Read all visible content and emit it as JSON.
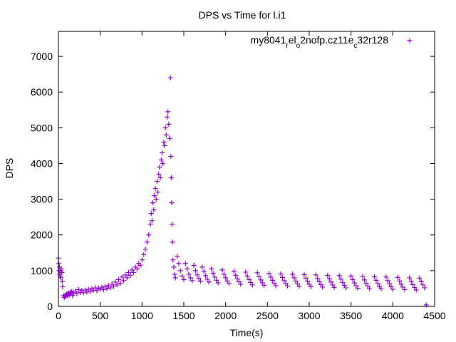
{
  "chart_data": {
    "type": "scatter",
    "title": "DPS vs Time for l.i1",
    "xlabel": "Time(s)",
    "ylabel": "DPS",
    "xlim": [
      0,
      4500
    ],
    "ylim": [
      0,
      7700
    ],
    "x_ticks": [
      0,
      500,
      1000,
      1500,
      2000,
      2500,
      3000,
      3500,
      4000,
      4500
    ],
    "y_ticks": [
      0,
      1000,
      2000,
      3000,
      4000,
      5000,
      6000,
      7000
    ],
    "grid": false,
    "legend_position": "top-right",
    "series": [
      {
        "name": "my8041_rel_o2nofp.cz11e_c32r128",
        "color": "#9400d3",
        "marker": "+",
        "points": [
          [
            0,
            1350
          ],
          [
            5,
            1200
          ],
          [
            8,
            1000
          ],
          [
            12,
            1100
          ],
          [
            15,
            900
          ],
          [
            20,
            850
          ],
          [
            25,
            1000
          ],
          [
            30,
            800
          ],
          [
            35,
            1050
          ],
          [
            40,
            950
          ],
          [
            45,
            700
          ],
          [
            50,
            550
          ],
          [
            60,
            300
          ],
          [
            70,
            250
          ],
          [
            80,
            320
          ],
          [
            90,
            280
          ],
          [
            100,
            350
          ],
          [
            110,
            300
          ],
          [
            120,
            380
          ],
          [
            130,
            320
          ],
          [
            140,
            400
          ],
          [
            150,
            350
          ],
          [
            160,
            420
          ],
          [
            170,
            300
          ],
          [
            180,
            380
          ],
          [
            200,
            430
          ],
          [
            220,
            350
          ],
          [
            240,
            470
          ],
          [
            260,
            390
          ],
          [
            280,
            450
          ],
          [
            300,
            380
          ],
          [
            320,
            460
          ],
          [
            340,
            400
          ],
          [
            360,
            480
          ],
          [
            380,
            420
          ],
          [
            400,
            500
          ],
          [
            420,
            450
          ],
          [
            440,
            520
          ],
          [
            460,
            440
          ],
          [
            480,
            510
          ],
          [
            500,
            480
          ],
          [
            520,
            540
          ],
          [
            540,
            470
          ],
          [
            560,
            560
          ],
          [
            580,
            500
          ],
          [
            600,
            580
          ],
          [
            620,
            520
          ],
          [
            640,
            620
          ],
          [
            660,
            560
          ],
          [
            680,
            680
          ],
          [
            700,
            600
          ],
          [
            720,
            750
          ],
          [
            740,
            650
          ],
          [
            760,
            820
          ],
          [
            780,
            720
          ],
          [
            800,
            880
          ],
          [
            820,
            800
          ],
          [
            840,
            950
          ],
          [
            860,
            870
          ],
          [
            880,
            1020
          ],
          [
            900,
            950
          ],
          [
            920,
            1100
          ],
          [
            940,
            1050
          ],
          [
            960,
            1200
          ],
          [
            980,
            1150
          ],
          [
            1000,
            1300
          ],
          [
            1020,
            1450
          ],
          [
            1040,
            1600
          ],
          [
            1060,
            1800
          ],
          [
            1080,
            2000
          ],
          [
            1100,
            2300
          ],
          [
            1110,
            2600
          ],
          [
            1120,
            2400
          ],
          [
            1130,
            2900
          ],
          [
            1140,
            2700
          ],
          [
            1150,
            3100
          ],
          [
            1160,
            3300
          ],
          [
            1170,
            3000
          ],
          [
            1180,
            3500
          ],
          [
            1190,
            3200
          ],
          [
            1200,
            3700
          ],
          [
            1210,
            3900
          ],
          [
            1220,
            3600
          ],
          [
            1230,
            4100
          ],
          [
            1240,
            4300
          ],
          [
            1250,
            4000
          ],
          [
            1260,
            4600
          ],
          [
            1270,
            4500
          ],
          [
            1280,
            5000
          ],
          [
            1290,
            4800
          ],
          [
            1300,
            5300
          ],
          [
            1310,
            5450
          ],
          [
            1320,
            5100
          ],
          [
            1330,
            4700
          ],
          [
            1340,
            6400
          ],
          [
            1345,
            4200
          ],
          [
            1350,
            3600
          ],
          [
            1355,
            2900
          ],
          [
            1360,
            2300
          ],
          [
            1365,
            1800
          ],
          [
            1370,
            1300
          ],
          [
            1380,
            1100
          ],
          [
            1390,
            900
          ],
          [
            1400,
            800
          ],
          [
            1420,
            1400
          ],
          [
            1440,
            1200
          ],
          [
            1460,
            1000
          ],
          [
            1480,
            850
          ],
          [
            1500,
            750
          ],
          [
            1520,
            1200
          ],
          [
            1540,
            1050
          ],
          [
            1560,
            900
          ],
          [
            1580,
            800
          ],
          [
            1600,
            720
          ],
          [
            1620,
            1150
          ],
          [
            1640,
            1000
          ],
          [
            1660,
            880
          ],
          [
            1680,
            780
          ],
          [
            1700,
            700
          ],
          [
            1720,
            1100
          ],
          [
            1740,
            980
          ],
          [
            1760,
            860
          ],
          [
            1780,
            760
          ],
          [
            1800,
            680
          ],
          [
            1830,
            1050
          ],
          [
            1850,
            930
          ],
          [
            1870,
            820
          ],
          [
            1890,
            730
          ],
          [
            1910,
            660
          ],
          [
            1960,
            1020
          ],
          [
            1980,
            900
          ],
          [
            2000,
            800
          ],
          [
            2020,
            710
          ],
          [
            2040,
            640
          ],
          [
            2100,
            980
          ],
          [
            2120,
            870
          ],
          [
            2140,
            770
          ],
          [
            2160,
            690
          ],
          [
            2180,
            620
          ],
          [
            2240,
            960
          ],
          [
            2260,
            850
          ],
          [
            2280,
            750
          ],
          [
            2300,
            670
          ],
          [
            2320,
            600
          ],
          [
            2380,
            940
          ],
          [
            2400,
            830
          ],
          [
            2420,
            740
          ],
          [
            2440,
            660
          ],
          [
            2460,
            590
          ],
          [
            2520,
            920
          ],
          [
            2540,
            820
          ],
          [
            2560,
            730
          ],
          [
            2580,
            650
          ],
          [
            2600,
            580
          ],
          [
            2660,
            910
          ],
          [
            2680,
            810
          ],
          [
            2700,
            720
          ],
          [
            2720,
            640
          ],
          [
            2740,
            570
          ],
          [
            2800,
            900
          ],
          [
            2820,
            800
          ],
          [
            2840,
            710
          ],
          [
            2860,
            630
          ],
          [
            2880,
            560
          ],
          [
            2940,
            890
          ],
          [
            2960,
            790
          ],
          [
            2980,
            700
          ],
          [
            3000,
            620
          ],
          [
            3020,
            550
          ],
          [
            3080,
            880
          ],
          [
            3100,
            780
          ],
          [
            3120,
            690
          ],
          [
            3140,
            610
          ],
          [
            3160,
            540
          ],
          [
            3220,
            870
          ],
          [
            3240,
            770
          ],
          [
            3260,
            680
          ],
          [
            3280,
            600
          ],
          [
            3300,
            530
          ],
          [
            3360,
            860
          ],
          [
            3380,
            760
          ],
          [
            3400,
            670
          ],
          [
            3420,
            590
          ],
          [
            3440,
            520
          ],
          [
            3500,
            850
          ],
          [
            3520,
            750
          ],
          [
            3540,
            660
          ],
          [
            3560,
            580
          ],
          [
            3580,
            510
          ],
          [
            3640,
            840
          ],
          [
            3660,
            740
          ],
          [
            3680,
            650
          ],
          [
            3700,
            570
          ],
          [
            3720,
            500
          ],
          [
            3780,
            830
          ],
          [
            3800,
            730
          ],
          [
            3820,
            640
          ],
          [
            3840,
            560
          ],
          [
            3860,
            490
          ],
          [
            3920,
            820
          ],
          [
            3940,
            720
          ],
          [
            3960,
            630
          ],
          [
            3980,
            550
          ],
          [
            4000,
            480
          ],
          [
            4060,
            810
          ],
          [
            4080,
            710
          ],
          [
            4100,
            620
          ],
          [
            4120,
            540
          ],
          [
            4140,
            470
          ],
          [
            4200,
            800
          ],
          [
            4220,
            700
          ],
          [
            4240,
            610
          ],
          [
            4260,
            530
          ],
          [
            4280,
            460
          ],
          [
            4320,
            790
          ],
          [
            4340,
            690
          ],
          [
            4360,
            600
          ],
          [
            4380,
            520
          ],
          [
            4400,
            40
          ]
        ]
      }
    ]
  }
}
